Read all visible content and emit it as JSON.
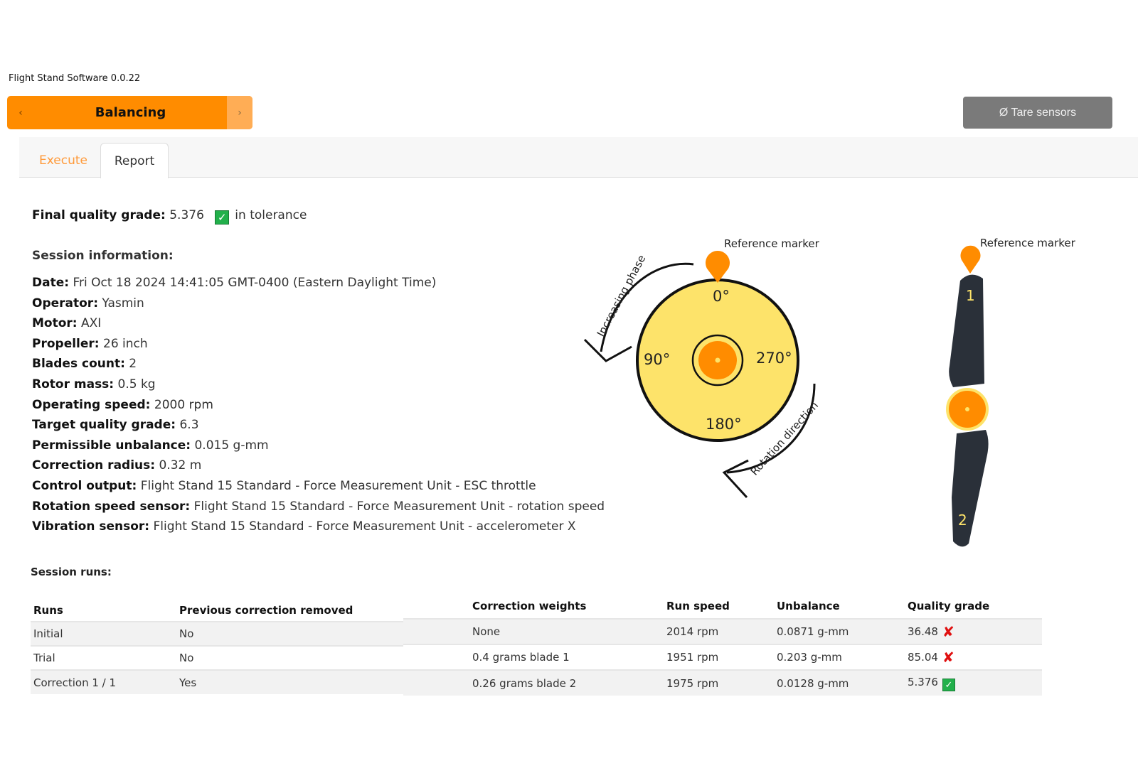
{
  "app": {
    "title": "Flight Stand Software 0.0.22"
  },
  "mode": {
    "label": "Balancing",
    "prev_icon": "chevron-left-icon",
    "next_icon": "chevron-right-icon",
    "color": "#ff8c00"
  },
  "toolbar": {
    "tare_label": "Ø Tare sensors"
  },
  "tabs": [
    {
      "label": "Execute",
      "active": false
    },
    {
      "label": "Report",
      "active": true
    }
  ],
  "report": {
    "final_grade_label": "Final quality grade:",
    "final_grade_value": "5.376",
    "tolerance_text": "in tolerance",
    "session_title": "Session information:",
    "info": [
      {
        "label": "Date:",
        "value": "Fri Oct 18 2024 14:41:05 GMT-0400 (Eastern Daylight Time)"
      },
      {
        "label": "Operator:",
        "value": "Yasmin"
      },
      {
        "label": "Motor:",
        "value": "AXI"
      },
      {
        "label": "Propeller:",
        "value": "26 inch"
      },
      {
        "label": "Blades count:",
        "value": "2"
      },
      {
        "label": "Rotor mass:",
        "value": "0.5 kg"
      },
      {
        "label": "Operating speed:",
        "value": "2000 rpm"
      },
      {
        "label": "Target quality grade:",
        "value": "6.3"
      },
      {
        "label": "Permissible unbalance:",
        "value": "0.015 g-mm"
      },
      {
        "label": "Correction radius:",
        "value": "0.32 m"
      },
      {
        "label": "Control output:",
        "value": "Flight Stand 15 Standard - Force Measurement Unit - ESC throttle"
      },
      {
        "label": "Rotation speed sensor:",
        "value": "Flight Stand 15 Standard - Force Measurement Unit - rotation speed"
      },
      {
        "label": "Vibration sensor:",
        "value": "Flight Stand 15 Standard - Force Measurement Unit - accelerometer X"
      }
    ],
    "runs_title": "Session runs:",
    "columns": [
      "Runs",
      "Previous correction removed",
      "Correction weights",
      "Run speed",
      "Unbalance",
      "Quality grade"
    ],
    "rows": [
      {
        "run": "Initial",
        "removed": "No",
        "weights": "None",
        "speed": "2014 rpm",
        "unbalance": "0.0871 g-mm",
        "grade": "36.48",
        "ok": false
      },
      {
        "run": "Trial",
        "removed": "No",
        "weights": "0.4 grams blade 1",
        "speed": "1951 rpm",
        "unbalance": "0.203 g-mm",
        "grade": "85.04",
        "ok": false
      },
      {
        "run": "Correction 1 / 1",
        "removed": "Yes",
        "weights": "0.26 grams blade 2",
        "speed": "1975 rpm",
        "unbalance": "0.0128 g-mm",
        "grade": "5.376",
        "ok": true
      }
    ]
  },
  "diagram": {
    "reference_marker": "Reference marker",
    "increasing_phase": "Increasing phase",
    "rotation_direction": "Rotation direction",
    "angles": {
      "a0": "0°",
      "a90": "90°",
      "a180": "180°",
      "a270": "270°"
    },
    "blade1": "1",
    "blade2": "2",
    "colors": {
      "disc": "#fde36a",
      "marker": "#ff8c00",
      "blade": "#2a3039"
    }
  }
}
